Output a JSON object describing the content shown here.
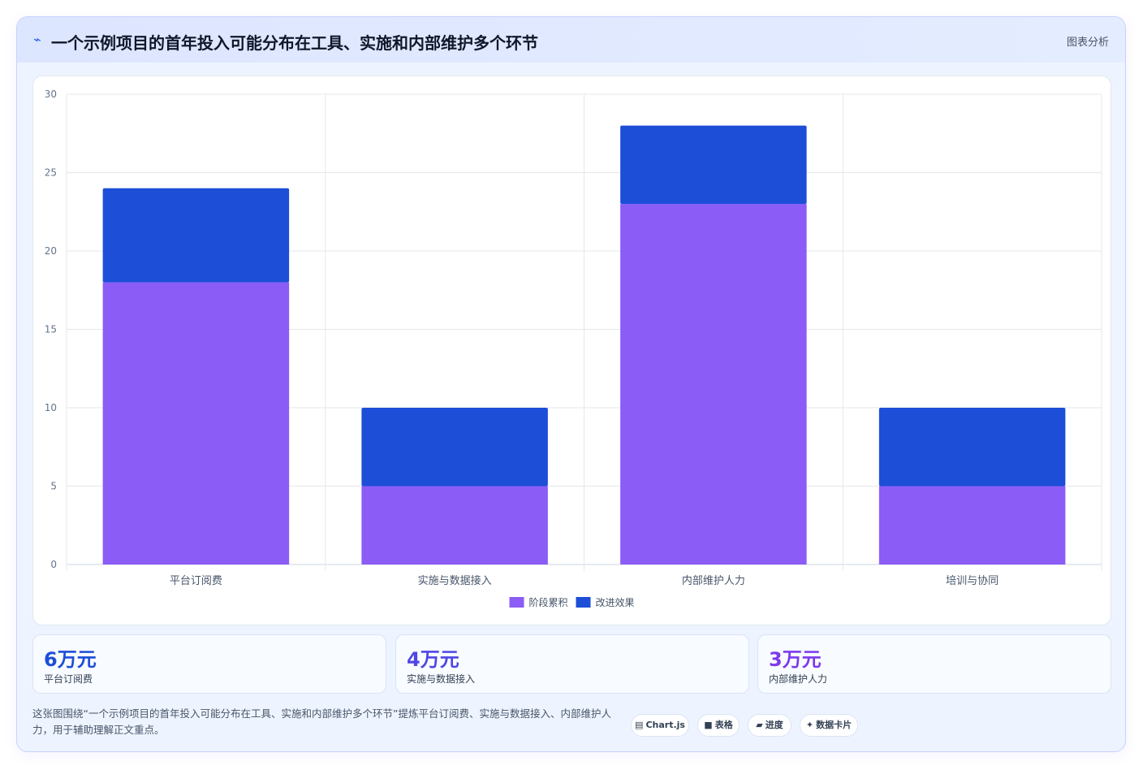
{
  "header": {
    "icon": "sparkline-icon",
    "title": "一个示例项目的首年投入可能分布在工具、实施和内部维护多个环节",
    "tag": "图表分析"
  },
  "chart_data": {
    "type": "bar",
    "stacked": true,
    "categories": [
      "平台订阅费",
      "实施与数据接入",
      "内部维护人力",
      "培训与协同"
    ],
    "series": [
      {
        "name": "阶段累积",
        "values": [
          18,
          5,
          23,
          5
        ],
        "color": "#8b5cf6"
      },
      {
        "name": "改进效果",
        "values": [
          6,
          5,
          5,
          5
        ],
        "color": "#1d4ed8"
      }
    ],
    "ylim": [
      0,
      30
    ],
    "yticks": [
      0,
      5,
      10,
      15,
      20,
      25,
      30
    ],
    "grid": true,
    "legend": "bottom-center"
  },
  "stats": [
    {
      "value": "6万元",
      "label": "平台订阅费",
      "color": "#1d4ed8"
    },
    {
      "value": "4万元",
      "label": "实施与数据接入",
      "color": "#4f46e5"
    },
    {
      "value": "3万元",
      "label": "内部维护人力",
      "color": "#7c3aed"
    }
  ],
  "footer": {
    "note": "这张图围绕“一个示例项目的首年投入可能分布在工具、实施和内部维护多个环节”提炼平台订阅费、实施与数据接入、内部维护人力，用于辅助理解正文重点。",
    "pills": [
      {
        "icon": "chart-icon",
        "glyph": "▤",
        "label": "Chart.js"
      },
      {
        "icon": "table-icon",
        "glyph": "■",
        "label": "表格"
      },
      {
        "icon": "progress-icon",
        "glyph": "▰",
        "label": "进度"
      },
      {
        "icon": "card-icon",
        "glyph": "✦",
        "label": "数据卡片"
      }
    ]
  }
}
